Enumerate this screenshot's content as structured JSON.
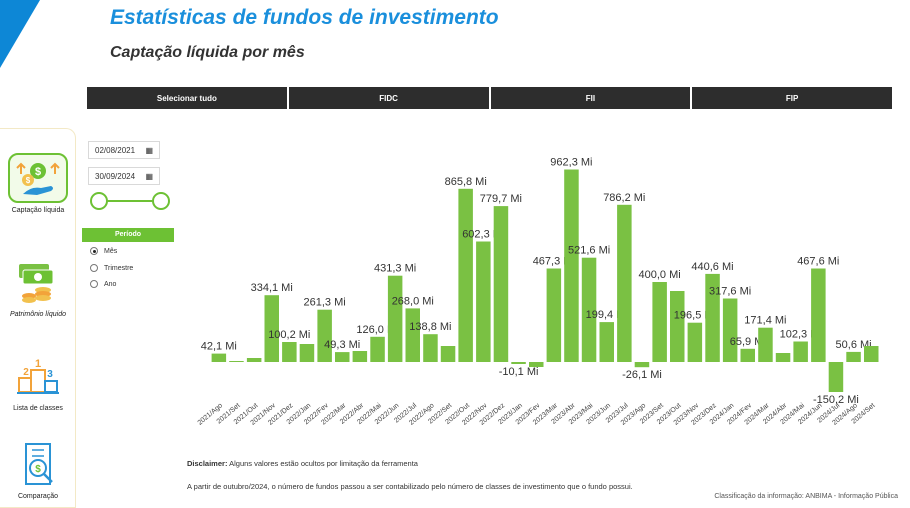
{
  "header": {
    "title": "Estatísticas de fundos de investimento",
    "subtitle": "Captação líquida por mês"
  },
  "filters": [
    "Selecionar tudo",
    "FIDC",
    "FII",
    "FIP"
  ],
  "sidebar": {
    "items": [
      {
        "label": "Captação líquida",
        "icon": "money-hand-icon",
        "active": true
      },
      {
        "label": "Patrimônio líquido",
        "icon": "cash-coins-icon",
        "active": false
      },
      {
        "label": "Lista de classes",
        "icon": "podium-icon",
        "active": false
      },
      {
        "label": "Comparação",
        "icon": "building-search-icon",
        "active": false
      }
    ]
  },
  "date_range": {
    "start": "02/08/2021",
    "end": "30/09/2024"
  },
  "period": {
    "title": "Período",
    "options": [
      "Mês",
      "Trimestre",
      "Ano"
    ],
    "selected": "Mês"
  },
  "chart_data": {
    "type": "bar",
    "categories": [
      "2021/Ago",
      "2021/Set",
      "2021/Out",
      "2021/Nov",
      "2021/Dez",
      "2022/Jan",
      "2022/Fev",
      "2022/Mar",
      "2022/Abr",
      "2022/Mai",
      "2022/Jun",
      "2022/Jul",
      "2022/Ago",
      "2022/Set",
      "2022/Out",
      "2022/Nov",
      "2022/Dez",
      "2023/Jan",
      "2023/Fev",
      "2023/Mar",
      "2023/Abr",
      "2023/Mai",
      "2023/Jun",
      "2023/Jul",
      "2023/Ago",
      "2023/Set",
      "2023/Out",
      "2023/Nov",
      "2023/Dez",
      "2024/Jan",
      "2024/Fev",
      "2024/Mar",
      "2024/Abr",
      "2024/Mai",
      "2024/Jun",
      "2024/Jul",
      "2024/Ago",
      "2024/Set"
    ],
    "values": [
      42.1,
      5,
      20,
      334.1,
      100.2,
      90,
      261.3,
      49.3,
      55,
      126.0,
      431.3,
      268.0,
      138.8,
      80,
      865.8,
      602.3,
      779.7,
      -10.1,
      -25,
      467.3,
      962.3,
      521.6,
      199.4,
      786.2,
      -26.1,
      400.0,
      355,
      196.5,
      440.6,
      317.6,
      65.9,
      171.4,
      45,
      102.3,
      467.6,
      -150.2,
      50.6,
      80
    ],
    "labels": [
      "42,1 Mi",
      "",
      "",
      "334,1 Mi",
      "100,2 Mi",
      "",
      "261,3 Mi",
      "49,3 Mi",
      "",
      "126,0 Mi",
      "431,3 Mi",
      "268,0 Mi",
      "138,8 Mi",
      "",
      "865,8 Mi",
      "602,3 Mi",
      "779,7 Mi",
      "-10,1 Mi",
      "",
      "467,3 Mi",
      "962,3 Mi",
      "521,6 Mi",
      "199,4 Mi",
      "786,2 Mi",
      "-26,1 Mi",
      "400,0 Mi",
      "",
      "196,5 Mi",
      "440,6 Mi",
      "317,6 Mi",
      "65,9 Mi",
      "171,4 Mi",
      "",
      "102,3 Mi",
      "467,6 Mi",
      "-150,2 Mi",
      "50,6 Mi",
      ""
    ],
    "bar_color": "#7ac143",
    "ylim": [
      -180,
      1000
    ],
    "grid": false
  },
  "footer": {
    "disclaimer_label": "Disclaimer:",
    "disclaimer_text": "Alguns valores estão ocultos por limitação da ferramenta",
    "note": "A partir de outubro/2024, o número de fundos passou a ser contabilizado pelo número de classes de investimento que o fundo possui.",
    "classification": "Classificação da informação: ANBIMA - Informação Pública"
  }
}
